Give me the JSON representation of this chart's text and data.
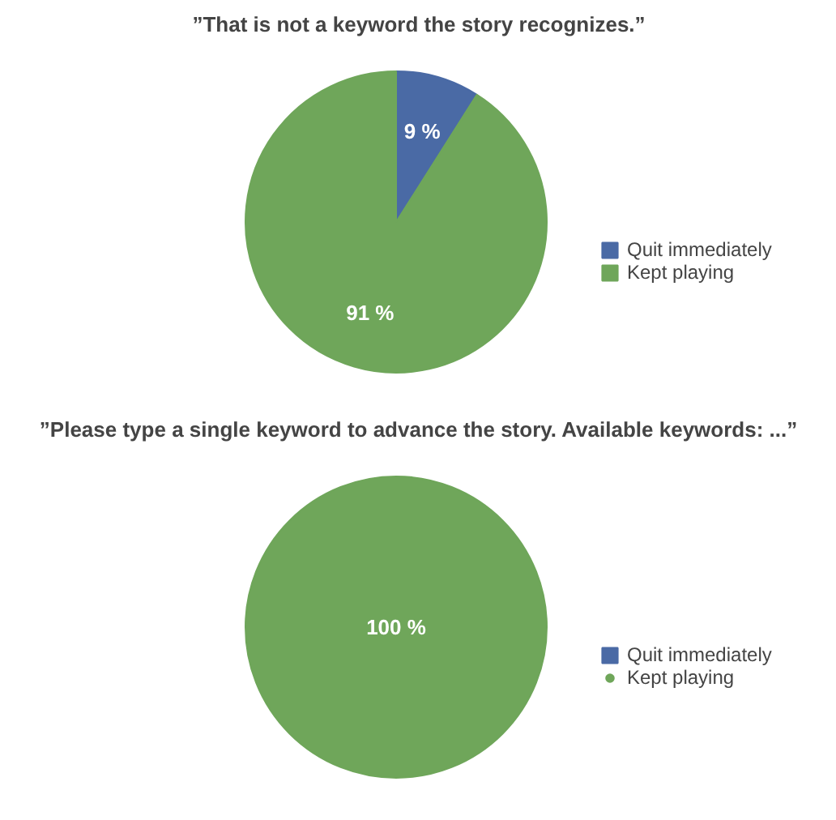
{
  "chart_data": [
    {
      "type": "pie",
      "title": "”That is not a keyword the story recognizes.”",
      "categories": [
        "Quit immediately",
        "Kept playing"
      ],
      "values": [
        9,
        91
      ],
      "colors": [
        "#4a6aa5",
        "#6fa65a"
      ],
      "value_labels": [
        "9 %",
        "91 %"
      ],
      "legend": "right"
    },
    {
      "type": "pie",
      "title": "”Please type a single keyword to advance the story. Available keywords: ...”",
      "categories": [
        "Quit immediately",
        "Kept playing"
      ],
      "values": [
        0,
        100
      ],
      "colors": [
        "#4a6aa5",
        "#6fa65a"
      ],
      "value_labels": [
        null,
        "100 %"
      ],
      "legend": "right"
    }
  ]
}
